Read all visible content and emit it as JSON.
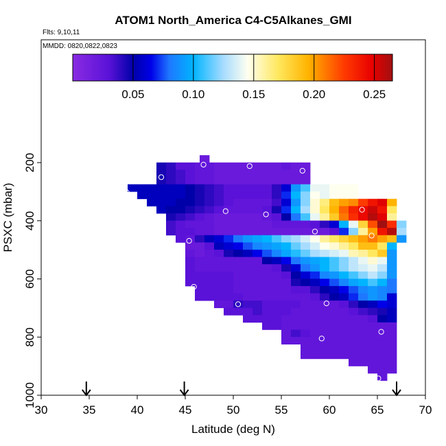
{
  "chart_data": {
    "type": "heatmap",
    "title": "ATOM1 North_America C4-C5Alkanes_GMI",
    "annotations": [
      "Flts: 9,10,11",
      "MMDD: 0820,0822,0823"
    ],
    "xlabel": "Latitude (deg N)",
    "ylabel": "PSXC (mbar)",
    "xlim": [
      30,
      70
    ],
    "ylim": [
      1000,
      50
    ],
    "x_ticks": [
      30,
      35,
      40,
      45,
      50,
      55,
      60,
      65,
      70
    ],
    "x_tick_labels": [
      "30",
      "35",
      "40",
      "45",
      "50",
      "55",
      "60",
      "65",
      "70"
    ],
    "y_ticks": [
      200,
      400,
      600,
      800,
      1000
    ],
    "y_tick_labels": [
      "200",
      "400",
      "600",
      "800",
      "1000"
    ],
    "colorbar": {
      "range": [
        0,
        0.265
      ],
      "ticks": [
        0.05,
        0.1,
        0.15,
        0.2,
        0.25
      ],
      "tick_labels": [
        "0.05",
        "0.10",
        "0.15",
        "0.20",
        "0.25"
      ],
      "stops": [
        [
          0.0,
          "#8a2be2"
        ],
        [
          0.03,
          "#5a12d8"
        ],
        [
          0.05,
          "#0000a8"
        ],
        [
          0.065,
          "#0000e8"
        ],
        [
          0.08,
          "#1e78ff"
        ],
        [
          0.1,
          "#00b4ff"
        ],
        [
          0.125,
          "#a8dcff"
        ],
        [
          0.145,
          "#fffff0"
        ],
        [
          0.17,
          "#ffe860"
        ],
        [
          0.195,
          "#ffb400"
        ],
        [
          0.225,
          "#ff3a00"
        ],
        [
          0.248,
          "#e80000"
        ],
        [
          0.265,
          "#a01010"
        ]
      ]
    },
    "cell_width_deg": 1.0,
    "cell_height_mbar": 25,
    "arrows_latitude": [
      34.7,
      44.9,
      67.0
    ],
    "samples": [
      [
        46.9,
        207
      ],
      [
        51.7,
        212
      ],
      [
        57.2,
        228
      ],
      [
        42.5,
        250
      ],
      [
        38.9,
        302
      ],
      [
        63.4,
        362
      ],
      [
        49.2,
        367
      ],
      [
        53.4,
        378
      ],
      [
        58.5,
        437
      ],
      [
        64.4,
        451
      ],
      [
        45.4,
        469
      ],
      [
        45.9,
        627
      ],
      [
        50.5,
        687
      ],
      [
        59.7,
        684
      ],
      [
        65.4,
        782
      ],
      [
        59.2,
        805
      ],
      [
        65.1,
        942
      ]
    ],
    "rows": [
      {
        "p": 187,
        "xs": 46.5,
        "v": [
          0.02
        ]
      },
      {
        "p": 212,
        "xs": 42,
        "v": [
          0.045,
          0.04,
          0.03,
          0.03,
          0.025,
          0.025,
          0.02,
          0.02,
          0.02,
          0.02,
          0.02,
          0.02,
          0.02,
          0.025,
          0.02,
          0.02
        ]
      },
      {
        "p": 237,
        "xs": 42,
        "v": [
          0.045,
          0.04,
          0.035,
          0.03,
          0.025,
          0.025,
          0.02,
          0.02,
          0.02,
          0.02,
          0.02,
          0.02,
          0.02,
          0.02,
          0.02,
          0.02
        ]
      },
      {
        "p": 262,
        "xs": 42,
        "v": [
          0.045,
          0.04,
          0.035,
          0.03,
          0.025,
          0.025,
          0.02,
          0.02,
          0.02,
          0.02,
          0.02,
          0.02,
          0.02,
          0.02,
          0.02,
          0.02
        ]
      },
      {
        "p": 287,
        "xs": 39,
        "v": [
          0.055,
          0.055,
          0.055,
          0.055,
          0.055,
          0.055,
          0.05,
          0.045,
          0.04,
          0.035,
          0.03,
          0.03,
          0.03,
          0.03,
          0.03,
          0.04,
          0.06,
          0.09,
          0.11,
          0.14,
          0.14,
          0.145,
          0.145,
          0.145
        ]
      },
      {
        "p": 312,
        "xs": 40,
        "v": [
          0.055,
          0.055,
          0.055,
          0.055,
          0.055,
          0.05,
          0.045,
          0.04,
          0.035,
          0.03,
          0.03,
          0.03,
          0.03,
          0.03,
          0.04,
          0.07,
          0.1,
          0.12,
          0.145,
          0.14,
          0.145,
          0.145,
          0.145
        ]
      },
      {
        "p": 337,
        "xs": 41,
        "v": [
          0.055,
          0.055,
          0.055,
          0.05,
          0.05,
          0.045,
          0.04,
          0.035,
          0.03,
          0.025,
          0.025,
          0.025,
          0.025,
          0.035,
          0.06,
          0.09,
          0.12,
          0.15,
          0.165,
          0.19,
          0.2,
          0.205,
          0.225,
          0.24,
          0.25,
          0.195
        ]
      },
      {
        "p": 362,
        "xs": 42,
        "v": [
          0.055,
          0.05,
          0.05,
          0.045,
          0.04,
          0.035,
          0.03,
          0.025,
          0.025,
          0.025,
          0.025,
          0.03,
          0.045,
          0.07,
          0.1,
          0.125,
          0.15,
          0.17,
          0.195,
          0.215,
          0.235,
          0.245,
          0.255,
          0.24,
          0.17
        ]
      },
      {
        "p": 387,
        "xs": 43,
        "v": [
          0.045,
          0.04,
          0.035,
          0.03,
          0.025,
          0.02,
          0.02,
          0.02,
          0.02,
          0.02,
          0.025,
          0.03,
          0.05,
          0.08,
          0.11,
          0.14,
          0.16,
          0.185,
          0.21,
          0.23,
          0.245,
          0.26,
          0.25,
          0.16
        ]
      },
      {
        "p": 412,
        "xs": 43,
        "v": [
          0.035,
          0.03,
          0.025,
          0.025,
          0.025,
          0.02,
          0.02,
          0.02,
          0.02,
          0.02,
          0.02,
          0.025,
          0.025,
          0.025,
          0.025,
          0.03,
          0.04,
          0.06,
          0.1,
          0.14,
          0.18,
          0.22,
          0.265,
          0.23,
          0.12
        ]
      },
      {
        "p": 437,
        "xs": 43,
        "v": [
          0.035,
          0.03,
          0.03,
          0.025,
          0.025,
          0.02,
          0.02,
          0.02,
          0.02,
          0.02,
          0.02,
          0.02,
          0.02,
          0.02,
          0.02,
          0.02,
          0.02,
          0.03,
          0.07,
          0.12,
          0.16,
          0.2,
          0.24,
          0.26,
          0.125
        ]
      },
      {
        "p": 462,
        "xs": 44,
        "v": [
          0.03,
          0.025,
          0.04,
          0.055,
          0.06,
          0.07,
          0.08,
          0.09,
          0.095,
          0.1,
          0.11,
          0.12,
          0.125,
          0.135,
          0.145,
          0.16,
          0.17,
          0.18,
          0.19,
          0.2,
          0.21,
          0.2,
          0.19,
          0.09
        ]
      },
      {
        "p": 487,
        "xs": 45,
        "v": [
          0.02,
          0.02,
          0.03,
          0.055,
          0.06,
          0.065,
          0.075,
          0.085,
          0.09,
          0.095,
          0.1,
          0.115,
          0.125,
          0.135,
          0.145,
          0.15,
          0.16,
          0.17,
          0.19,
          0.19,
          0.17,
          0.1
        ]
      },
      {
        "p": 512,
        "xs": 45,
        "v": [
          0.025,
          0.02,
          0.025,
          0.03,
          0.045,
          0.05,
          0.055,
          0.065,
          0.075,
          0.085,
          0.095,
          0.105,
          0.115,
          0.125,
          0.13,
          0.135,
          0.14,
          0.155,
          0.16,
          0.17,
          0.185,
          0.09
        ]
      },
      {
        "p": 537,
        "xs": 45,
        "v": [
          0.03,
          0.025,
          0.025,
          0.025,
          0.025,
          0.025,
          0.025,
          0.025,
          0.05,
          0.055,
          0.065,
          0.08,
          0.09,
          0.095,
          0.1,
          0.11,
          0.12,
          0.13,
          0.14,
          0.15,
          0.14,
          0.09
        ]
      },
      {
        "p": 562,
        "xs": 45,
        "v": [
          0.03,
          0.025,
          0.025,
          0.025,
          0.025,
          0.025,
          0.025,
          0.025,
          0.025,
          0.03,
          0.045,
          0.06,
          0.08,
          0.09,
          0.1,
          0.11,
          0.12,
          0.13,
          0.135,
          0.14,
          0.13,
          0.09
        ]
      },
      {
        "p": 587,
        "xs": 45,
        "v": [
          0.03,
          0.03,
          0.03,
          0.03,
          0.03,
          0.025,
          0.025,
          0.025,
          0.025,
          0.025,
          0.03,
          0.05,
          0.06,
          0.07,
          0.085,
          0.09,
          0.1,
          0.11,
          0.12,
          0.13,
          0.12,
          0.09
        ]
      },
      {
        "p": 612,
        "xs": 45,
        "v": [
          0.03,
          0.03,
          0.03,
          0.03,
          0.03,
          0.025,
          0.025,
          0.025,
          0.025,
          0.025,
          0.025,
          0.045,
          0.05,
          0.055,
          0.065,
          0.075,
          0.085,
          0.095,
          0.1,
          0.11,
          0.1,
          0.08
        ]
      },
      {
        "p": 637,
        "xs": 46,
        "v": [
          0.03,
          0.03,
          0.03,
          0.03,
          0.025,
          0.025,
          0.025,
          0.025,
          0.025,
          0.025,
          0.03,
          0.03,
          0.04,
          0.05,
          0.055,
          0.065,
          0.075,
          0.085,
          0.09,
          0.085,
          0.08
        ]
      },
      {
        "p": 662,
        "xs": 46,
        "v": [
          0.03,
          0.03,
          0.03,
          0.03,
          0.03,
          0.025,
          0.025,
          0.025,
          0.025,
          0.025,
          0.025,
          0.025,
          0.03,
          0.04,
          0.05,
          0.055,
          0.07,
          0.08,
          0.09,
          0.085,
          0.06
        ]
      },
      {
        "p": 687,
        "xs": 48,
        "v": [
          0.025,
          0.025,
          0.04,
          0.035,
          0.035,
          0.03,
          0.03,
          0.03,
          0.03,
          0.025,
          0.025,
          0.025,
          0.025,
          0.03,
          0.04,
          0.05,
          0.055,
          0.065,
          0.06
        ]
      },
      {
        "p": 712,
        "xs": 49,
        "v": [
          0.03,
          0.03,
          0.03,
          0.035,
          0.03,
          0.03,
          0.03,
          0.025,
          0.025,
          0.025,
          0.025,
          0.025,
          0.025,
          0.03,
          0.035,
          0.04,
          0.045,
          0.055
        ]
      },
      {
        "p": 737,
        "xs": 51,
        "v": [
          0.03,
          0.03,
          0.03,
          0.03,
          0.025,
          0.025,
          0.025,
          0.025,
          0.025,
          0.025,
          0.025,
          0.025,
          0.025,
          0.03,
          0.05,
          0.055
        ]
      },
      {
        "p": 762,
        "xs": 53,
        "v": [
          0.03,
          0.03,
          0.025,
          0.025,
          0.025,
          0.025,
          0.025,
          0.025,
          0.025,
          0.025,
          0.025,
          0.025,
          0.025,
          0.025
        ]
      },
      {
        "p": 787,
        "xs": 55,
        "v": [
          0.025,
          0.035,
          0.03,
          0.025,
          0.025,
          0.025,
          0.025,
          0.025,
          0.025,
          0.025,
          0.025,
          0.025
        ]
      },
      {
        "p": 812,
        "xs": 55,
        "v": [
          0.025,
          0.025,
          0.025,
          0.025,
          0.025,
          0.025,
          0.025,
          0.025,
          0.025,
          0.025,
          0.025,
          0.025
        ]
      },
      {
        "p": 837,
        "xs": 57,
        "v": [
          0.025,
          0.025,
          0.025,
          0.025,
          0.025,
          0.025,
          0.025,
          0.025,
          0.025,
          0.025
        ]
      },
      {
        "p": 862,
        "xs": 57,
        "v": [
          0.025,
          0.025,
          0.025,
          0.025,
          0.025,
          0.025,
          0.025,
          0.025,
          0.025,
          0.025
        ]
      },
      {
        "p": 887,
        "xs": 62,
        "v": [
          0.025,
          0.025,
          0.025,
          0.025,
          0.025
        ]
      },
      {
        "p": 912,
        "xs": 64,
        "v": [
          0.025,
          0.025,
          0.025
        ]
      },
      {
        "p": 937,
        "xs": 65,
        "v": [
          0.025
        ]
      }
    ]
  }
}
